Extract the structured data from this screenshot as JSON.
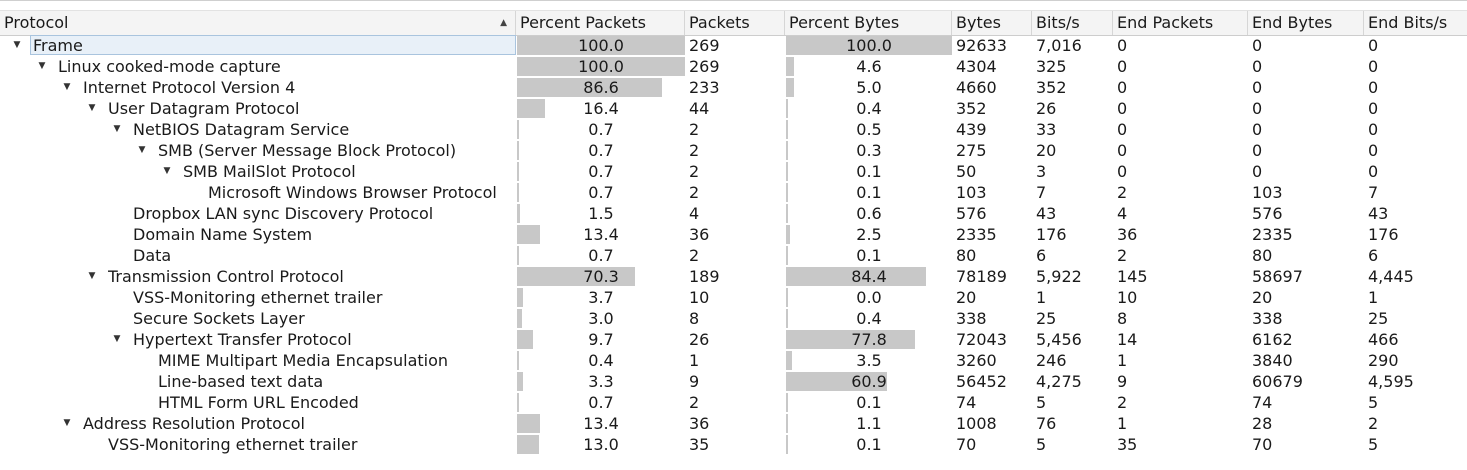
{
  "columns": [
    "Protocol",
    "Percent Packets",
    "Packets",
    "Percent Bytes",
    "Bytes",
    "Bits/s",
    "End Packets",
    "End Bytes",
    "End Bits/s"
  ],
  "icons": {
    "sort": "sort-ascending-icon",
    "expand": "expanded-arrow-icon"
  },
  "rows": [
    {
      "name": "Frame",
      "depth": 0,
      "expanded": true,
      "selected": true,
      "pct_packets": "100.0",
      "packets": "269",
      "pct_bytes": "100.0",
      "bytes": "92633",
      "bits": "7,016",
      "end_packets": "0",
      "end_bytes": "0",
      "end_bits": "0"
    },
    {
      "name": "Linux cooked-mode capture",
      "depth": 1,
      "expanded": true,
      "pct_packets": "100.0",
      "packets": "269",
      "pct_bytes": "4.6",
      "bytes": "4304",
      "bits": "325",
      "end_packets": "0",
      "end_bytes": "0",
      "end_bits": "0"
    },
    {
      "name": "Internet Protocol Version 4",
      "depth": 2,
      "expanded": true,
      "pct_packets": "86.6",
      "packets": "233",
      "pct_bytes": "5.0",
      "bytes": "4660",
      "bits": "352",
      "end_packets": "0",
      "end_bytes": "0",
      "end_bits": "0"
    },
    {
      "name": "User Datagram Protocol",
      "depth": 3,
      "expanded": true,
      "pct_packets": "16.4",
      "packets": "44",
      "pct_bytes": "0.4",
      "bytes": "352",
      "bits": "26",
      "end_packets": "0",
      "end_bytes": "0",
      "end_bits": "0"
    },
    {
      "name": "NetBIOS Datagram Service",
      "depth": 4,
      "expanded": true,
      "pct_packets": "0.7",
      "packets": "2",
      "pct_bytes": "0.5",
      "bytes": "439",
      "bits": "33",
      "end_packets": "0",
      "end_bytes": "0",
      "end_bits": "0"
    },
    {
      "name": "SMB (Server Message Block Protocol)",
      "depth": 5,
      "expanded": true,
      "pct_packets": "0.7",
      "packets": "2",
      "pct_bytes": "0.3",
      "bytes": "275",
      "bits": "20",
      "end_packets": "0",
      "end_bytes": "0",
      "end_bits": "0"
    },
    {
      "name": "SMB MailSlot Protocol",
      "depth": 6,
      "expanded": true,
      "pct_packets": "0.7",
      "packets": "2",
      "pct_bytes": "0.1",
      "bytes": "50",
      "bits": "3",
      "end_packets": "0",
      "end_bytes": "0",
      "end_bits": "0"
    },
    {
      "name": "Microsoft Windows Browser Protocol",
      "depth": 7,
      "expanded": false,
      "pct_packets": "0.7",
      "packets": "2",
      "pct_bytes": "0.1",
      "bytes": "103",
      "bits": "7",
      "end_packets": "2",
      "end_bytes": "103",
      "end_bits": "7"
    },
    {
      "name": "Dropbox LAN sync Discovery Protocol",
      "depth": 4,
      "expanded": false,
      "pct_packets": "1.5",
      "packets": "4",
      "pct_bytes": "0.6",
      "bytes": "576",
      "bits": "43",
      "end_packets": "4",
      "end_bytes": "576",
      "end_bits": "43"
    },
    {
      "name": "Domain Name System",
      "depth": 4,
      "expanded": false,
      "pct_packets": "13.4",
      "packets": "36",
      "pct_bytes": "2.5",
      "bytes": "2335",
      "bits": "176",
      "end_packets": "36",
      "end_bytes": "2335",
      "end_bits": "176"
    },
    {
      "name": "Data",
      "depth": 4,
      "expanded": false,
      "pct_packets": "0.7",
      "packets": "2",
      "pct_bytes": "0.1",
      "bytes": "80",
      "bits": "6",
      "end_packets": "2",
      "end_bytes": "80",
      "end_bits": "6"
    },
    {
      "name": "Transmission Control Protocol",
      "depth": 3,
      "expanded": true,
      "pct_packets": "70.3",
      "packets": "189",
      "pct_bytes": "84.4",
      "bytes": "78189",
      "bits": "5,922",
      "end_packets": "145",
      "end_bytes": "58697",
      "end_bits": "4,445"
    },
    {
      "name": "VSS-Monitoring ethernet trailer",
      "depth": 4,
      "expanded": false,
      "pct_packets": "3.7",
      "packets": "10",
      "pct_bytes": "0.0",
      "bytes": "20",
      "bits": "1",
      "end_packets": "10",
      "end_bytes": "20",
      "end_bits": "1"
    },
    {
      "name": "Secure Sockets Layer",
      "depth": 4,
      "expanded": false,
      "pct_packets": "3.0",
      "packets": "8",
      "pct_bytes": "0.4",
      "bytes": "338",
      "bits": "25",
      "end_packets": "8",
      "end_bytes": "338",
      "end_bits": "25"
    },
    {
      "name": "Hypertext Transfer Protocol",
      "depth": 4,
      "expanded": true,
      "pct_packets": "9.7",
      "packets": "26",
      "pct_bytes": "77.8",
      "bytes": "72043",
      "bits": "5,456",
      "end_packets": "14",
      "end_bytes": "6162",
      "end_bits": "466"
    },
    {
      "name": "MIME Multipart Media Encapsulation",
      "depth": 5,
      "expanded": false,
      "pct_packets": "0.4",
      "packets": "1",
      "pct_bytes": "3.5",
      "bytes": "3260",
      "bits": "246",
      "end_packets": "1",
      "end_bytes": "3840",
      "end_bits": "290"
    },
    {
      "name": "Line-based text data",
      "depth": 5,
      "expanded": false,
      "pct_packets": "3.3",
      "packets": "9",
      "pct_bytes": "60.9",
      "bytes": "56452",
      "bits": "4,275",
      "end_packets": "9",
      "end_bytes": "60679",
      "end_bits": "4,595"
    },
    {
      "name": "HTML Form URL Encoded",
      "depth": 5,
      "expanded": false,
      "pct_packets": "0.7",
      "packets": "2",
      "pct_bytes": "0.1",
      "bytes": "74",
      "bits": "5",
      "end_packets": "2",
      "end_bytes": "74",
      "end_bits": "5"
    },
    {
      "name": "Address Resolution Protocol",
      "depth": 2,
      "expanded": true,
      "pct_packets": "13.4",
      "packets": "36",
      "pct_bytes": "1.1",
      "bytes": "1008",
      "bits": "76",
      "end_packets": "1",
      "end_bytes": "28",
      "end_bits": "2"
    },
    {
      "name": "VSS-Monitoring ethernet trailer",
      "depth": 3,
      "expanded": false,
      "pct_packets": "13.0",
      "packets": "35",
      "pct_bytes": "0.1",
      "bytes": "70",
      "bits": "5",
      "end_packets": "35",
      "end_bytes": "70",
      "end_bits": "5"
    }
  ]
}
